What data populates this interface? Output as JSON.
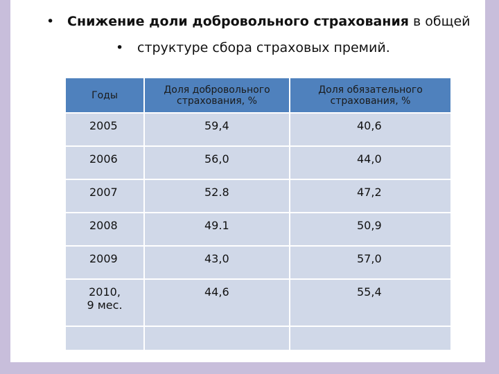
{
  "title": {
    "line1_bold": "Снижение доли добровольного страхования",
    "line1_rest": " в общей",
    "line2": "структуре сбора страховых премий."
  },
  "table": {
    "header": [
      "Годы",
      "Доля добровольного страхования, %",
      "Доля обязательного страхования, %"
    ],
    "rows": [
      [
        "2005",
        "59,4",
        "40,6"
      ],
      [
        "2006",
        "56,0",
        "44,0"
      ],
      [
        "2007",
        "52.8",
        "47,2"
      ],
      [
        "2008",
        "49.1",
        "50,9"
      ],
      [
        "2009",
        "43,0",
        "57,0"
      ],
      [
        "2010,\n9 мес.",
        "44,6",
        "55,4"
      ]
    ]
  }
}
